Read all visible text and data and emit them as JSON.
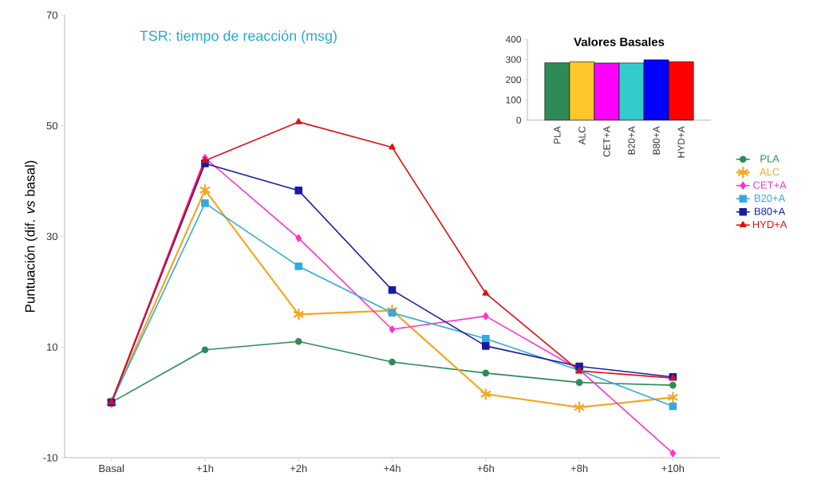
{
  "chart_data": [
    {
      "type": "line",
      "title": "TSR: tiempo de reacción (msg)",
      "ylabel": "Puntuación  (dif. *vs* basal)",
      "categories": [
        "Basal",
        "+1h",
        "+2h",
        "+4h",
        "+6h",
        "+8h",
        "+10h"
      ],
      "ylim": [
        -10,
        70
      ],
      "yticks": [
        -10,
        10,
        30,
        50,
        70
      ],
      "grid": false,
      "legend": "right",
      "series": [
        {
          "name": "PLA",
          "color": "#2e8b57",
          "marker": "circle",
          "values": [
            0,
            9.5,
            11.0,
            7.3,
            5.3,
            3.6,
            3.1
          ]
        },
        {
          "name": "ALC",
          "color": "#f5a623",
          "marker": "cross",
          "values": [
            0,
            38.4,
            15.9,
            16.6,
            1.5,
            -0.9,
            0.9
          ]
        },
        {
          "name": "CET+A",
          "color": "#ff33cc",
          "marker": "diamond",
          "values": [
            0,
            44.2,
            29.7,
            13.2,
            15.6,
            5.9,
            -9.2
          ]
        },
        {
          "name": "B20+A",
          "color": "#33aadd",
          "marker": "square",
          "values": [
            0,
            36.0,
            24.6,
            16.2,
            11.5,
            5.8,
            -0.7
          ]
        },
        {
          "name": "B80+A",
          "color": "#1a1aa8",
          "marker": "square",
          "values": [
            0,
            43.2,
            38.3,
            20.3,
            10.2,
            6.5,
            4.6
          ]
        },
        {
          "name": "HYD+A",
          "color": "#e01010",
          "marker": "triangle",
          "values": [
            0,
            43.7,
            50.7,
            46.1,
            19.7,
            5.7,
            4.4
          ]
        }
      ]
    },
    {
      "type": "bar",
      "title": "Valores Basales",
      "categories": [
        "PLA",
        "ALC",
        "CET+A",
        "B20+A",
        "B80+A",
        "HYD+A"
      ],
      "values": [
        284,
        288,
        283,
        283,
        299,
        289
      ],
      "colors": [
        "#2e8b57",
        "#ffc72c",
        "#ff00ff",
        "#33cccc",
        "#0000ff",
        "#ff0000"
      ],
      "ylim": [
        0,
        400
      ],
      "yticks": [
        0,
        100,
        200,
        300,
        400
      ],
      "grid": false
    }
  ]
}
